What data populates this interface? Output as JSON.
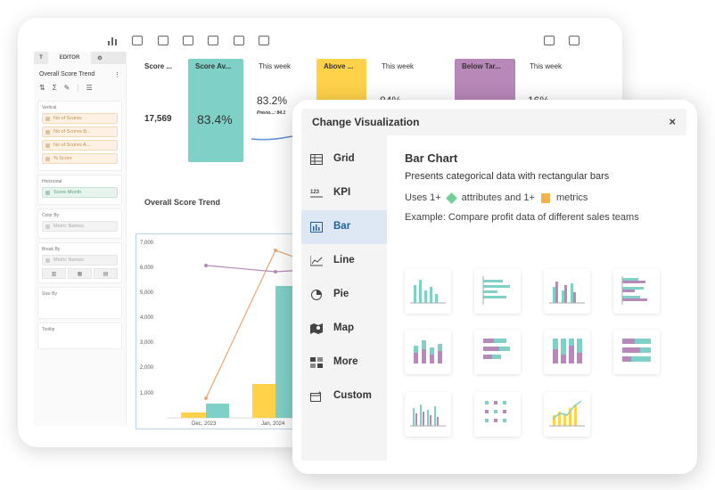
{
  "editor": {
    "tabs": [
      "T",
      "EDITOR",
      "⚙"
    ],
    "title": "Overall Score Trend",
    "sections": {
      "vertical": {
        "label": "Vertical",
        "chips": [
          "No of Scores",
          "No of Scores B...",
          "No of Scores A...",
          "% Score"
        ]
      },
      "horizontal": {
        "label": "Horizontal",
        "chips": [
          "Score Month"
        ]
      },
      "color_by": {
        "label": "Color By",
        "chips": [
          "Metric Names"
        ]
      },
      "break_by": {
        "label": "Break By",
        "chips": [
          "Metric Names"
        ]
      },
      "size_by": {
        "label": "Size By"
      },
      "tooltip": {
        "label": "Tooltip"
      }
    }
  },
  "kpis": [
    {
      "header": "Score ...",
      "value": "17,569"
    },
    {
      "header": "Score Av...",
      "value": "83.4%"
    },
    {
      "header": "This week",
      "value": "83.2%",
      "sub": "Previo...: 84.1"
    },
    {
      "header": "Above ...",
      "value": ""
    },
    {
      "header": "This week",
      "value": "84%"
    },
    {
      "header": "Below Tar...",
      "value": ""
    },
    {
      "header": "This week",
      "value": "16%"
    }
  ],
  "trend_title": "Overall Score Trend",
  "back_chart": {
    "y_ticks": [
      "7,000",
      "6,000",
      "5,000",
      "4,000",
      "3,000",
      "2,000",
      "1,000"
    ],
    "x_ticks": [
      "Dec, 2023",
      "Jan, 2024"
    ]
  },
  "dialog": {
    "title": "Change Visualization",
    "close": "×",
    "types": [
      {
        "label": "Grid",
        "icon": "grid-icon"
      },
      {
        "label": "KPI",
        "icon": "kpi-icon"
      },
      {
        "label": "Bar",
        "icon": "bar-chart-icon"
      },
      {
        "label": "Line",
        "icon": "line-chart-icon"
      },
      {
        "label": "Pie",
        "icon": "pie-chart-icon"
      },
      {
        "label": "Map",
        "icon": "map-icon"
      },
      {
        "label": "More",
        "icon": "more-icon"
      },
      {
        "label": "Custom",
        "icon": "custom-icon"
      }
    ],
    "selected": "Bar",
    "detail": {
      "title": "Bar Chart",
      "description": "Presents categorical data with rectangular bars",
      "uses_prefix": "Uses 1+",
      "uses_mid": "attributes and 1+",
      "uses_suffix": "metrics",
      "example": "Example: Compare profit data of different sales teams"
    }
  },
  "colors": {
    "teal": "#7fd1c8",
    "yellow": "#ffd24a",
    "purple": "#b888b8",
    "accent_blue": "#1f5fa3",
    "orange_line": "#f0a56a"
  }
}
